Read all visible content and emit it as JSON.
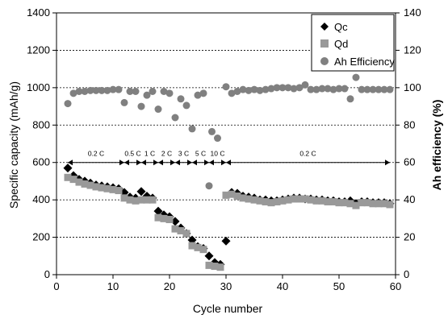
{
  "chart_data": {
    "type": "scatter",
    "xlabel": "Cycle number",
    "ylabel": "Specific capacity (mAh/g)",
    "y2label": "Ah efficiency (%)",
    "xlim": [
      0,
      60
    ],
    "ylim": [
      0,
      1400
    ],
    "y2lim": [
      0,
      140
    ],
    "x_ticks": [
      0,
      10,
      20,
      30,
      40,
      50,
      60
    ],
    "y_ticks": [
      0,
      200,
      400,
      600,
      800,
      1000,
      1200,
      1400
    ],
    "y2_ticks": [
      0,
      20,
      40,
      60,
      80,
      100,
      120,
      140
    ],
    "grid": "horizontal dashed",
    "legend_position": "top-right",
    "rate_arrow_y": 600,
    "rate_segments": [
      {
        "label": "0.2 C",
        "x0": 2,
        "x1": 12
      },
      {
        "label": "0.5 C",
        "x0": 12,
        "x1": 15
      },
      {
        "label": "1 C",
        "x0": 15,
        "x1": 18
      },
      {
        "label": "2 C",
        "x0": 18,
        "x1": 21
      },
      {
        "label": "3 C",
        "x0": 21,
        "x1": 24
      },
      {
        "label": "5 C",
        "x0": 24,
        "x1": 27
      },
      {
        "label": "10 C",
        "x0": 27,
        "x1": 30
      },
      {
        "label": "0.2 C",
        "x0": 30,
        "x1": 59
      }
    ],
    "series": [
      {
        "name": "Qc",
        "axis": "left",
        "marker": "diamond",
        "color": "#000000",
        "points": [
          [
            2,
            570
          ],
          [
            3,
            530
          ],
          [
            4,
            510
          ],
          [
            5,
            500
          ],
          [
            6,
            490
          ],
          [
            7,
            480
          ],
          [
            8,
            475
          ],
          [
            9,
            470
          ],
          [
            10,
            465
          ],
          [
            11,
            460
          ],
          [
            12,
            440
          ],
          [
            13,
            415
          ],
          [
            14,
            410
          ],
          [
            15,
            445
          ],
          [
            16,
            420
          ],
          [
            17,
            410
          ],
          [
            18,
            340
          ],
          [
            19,
            320
          ],
          [
            20,
            310
          ],
          [
            21,
            285
          ],
          [
            22,
            250
          ],
          [
            23,
            220
          ],
          [
            24,
            185
          ],
          [
            25,
            150
          ],
          [
            26,
            140
          ],
          [
            27,
            100
          ],
          [
            28,
            65
          ],
          [
            29,
            55
          ],
          [
            30,
            180
          ],
          [
            31,
            440
          ],
          [
            32,
            435
          ],
          [
            33,
            420
          ],
          [
            34,
            415
          ],
          [
            35,
            410
          ],
          [
            36,
            400
          ],
          [
            37,
            400
          ],
          [
            38,
            395
          ],
          [
            39,
            395
          ],
          [
            40,
            400
          ],
          [
            41,
            405
          ],
          [
            42,
            410
          ],
          [
            43,
            410
          ],
          [
            44,
            405
          ],
          [
            45,
            405
          ],
          [
            46,
            400
          ],
          [
            47,
            400
          ],
          [
            48,
            395
          ],
          [
            49,
            395
          ],
          [
            50,
            390
          ],
          [
            51,
            390
          ],
          [
            52,
            395
          ],
          [
            53,
            380
          ],
          [
            54,
            390
          ],
          [
            55,
            390
          ],
          [
            56,
            385
          ],
          [
            57,
            385
          ],
          [
            58,
            385
          ],
          [
            59,
            380
          ]
        ]
      },
      {
        "name": "Qd",
        "axis": "left",
        "marker": "square",
        "color": "#999999",
        "points": [
          [
            2,
            520
          ],
          [
            3,
            510
          ],
          [
            4,
            495
          ],
          [
            5,
            485
          ],
          [
            6,
            478
          ],
          [
            7,
            470
          ],
          [
            8,
            465
          ],
          [
            9,
            460
          ],
          [
            10,
            455
          ],
          [
            11,
            450
          ],
          [
            12,
            410
          ],
          [
            13,
            400
          ],
          [
            14,
            395
          ],
          [
            15,
            400
          ],
          [
            16,
            400
          ],
          [
            17,
            400
          ],
          [
            18,
            305
          ],
          [
            19,
            300
          ],
          [
            20,
            295
          ],
          [
            21,
            245
          ],
          [
            22,
            235
          ],
          [
            23,
            220
          ],
          [
            24,
            155
          ],
          [
            25,
            145
          ],
          [
            26,
            135
          ],
          [
            27,
            50
          ],
          [
            28,
            45
          ],
          [
            29,
            40
          ],
          [
            30,
            425
          ],
          [
            31,
            430
          ],
          [
            32,
            420
          ],
          [
            33,
            410
          ],
          [
            34,
            405
          ],
          [
            35,
            400
          ],
          [
            36,
            395
          ],
          [
            37,
            390
          ],
          [
            38,
            385
          ],
          [
            39,
            390
          ],
          [
            40,
            395
          ],
          [
            41,
            400
          ],
          [
            42,
            405
          ],
          [
            43,
            405
          ],
          [
            44,
            405
          ],
          [
            45,
            400
          ],
          [
            46,
            395
          ],
          [
            47,
            395
          ],
          [
            48,
            390
          ],
          [
            49,
            390
          ],
          [
            50,
            385
          ],
          [
            51,
            385
          ],
          [
            52,
            380
          ],
          [
            53,
            370
          ],
          [
            54,
            385
          ],
          [
            55,
            385
          ],
          [
            56,
            380
          ],
          [
            57,
            380
          ],
          [
            58,
            380
          ],
          [
            59,
            375
          ]
        ]
      },
      {
        "name": "Ah Efficiency",
        "axis": "right",
        "marker": "circle",
        "color": "#808080",
        "points": [
          [
            2,
            91.5
          ],
          [
            3,
            97
          ],
          [
            4,
            98
          ],
          [
            5,
            98
          ],
          [
            6,
            98.5
          ],
          [
            7,
            98.5
          ],
          [
            8,
            98.5
          ],
          [
            9,
            98.5
          ],
          [
            10,
            99
          ],
          [
            11,
            99
          ],
          [
            12,
            92
          ],
          [
            13,
            98
          ],
          [
            14,
            98
          ],
          [
            15,
            90
          ],
          [
            16,
            96
          ],
          [
            17,
            98
          ],
          [
            18,
            88.5
          ],
          [
            19,
            98
          ],
          [
            20,
            97
          ],
          [
            21,
            84
          ],
          [
            22,
            94
          ],
          [
            23,
            90.5
          ],
          [
            24,
            78
          ],
          [
            25,
            96
          ],
          [
            26,
            97
          ],
          [
            27,
            47.5
          ],
          [
            27.5,
            76.5
          ],
          [
            28.5,
            73
          ],
          [
            30,
            100.5
          ],
          [
            31,
            97
          ],
          [
            32,
            98
          ],
          [
            33,
            99
          ],
          [
            34,
            98.5
          ],
          [
            35,
            99
          ],
          [
            36,
            98.5
          ],
          [
            37,
            99
          ],
          [
            38,
            99.5
          ],
          [
            39,
            100
          ],
          [
            40,
            100
          ],
          [
            41,
            100
          ],
          [
            42,
            99.5
          ],
          [
            43,
            100
          ],
          [
            44,
            101.5
          ],
          [
            45,
            99
          ],
          [
            46,
            99
          ],
          [
            47,
            99.5
          ],
          [
            48,
            99.5
          ],
          [
            49,
            99
          ],
          [
            50,
            99.5
          ],
          [
            51,
            99.5
          ],
          [
            52,
            94
          ],
          [
            53,
            105.5
          ],
          [
            54,
            99
          ],
          [
            55,
            99
          ],
          [
            56,
            99
          ],
          [
            57,
            99
          ],
          [
            58,
            99
          ],
          [
            59,
            99
          ]
        ]
      }
    ]
  }
}
